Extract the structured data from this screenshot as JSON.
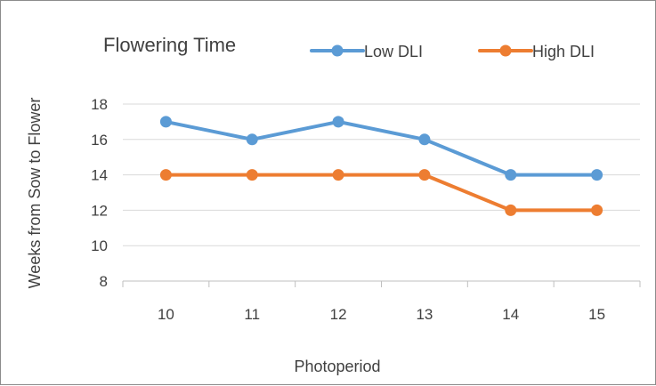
{
  "chart_data": {
    "type": "line",
    "title": "Flowering Time",
    "xlabel": "Photoperiod",
    "ylabel": "Weeks from Sow to Flower",
    "categories": [
      "10",
      "11",
      "12",
      "13",
      "14",
      "15"
    ],
    "series": [
      {
        "name": "Low DLI",
        "values": [
          17,
          16,
          17,
          16,
          14,
          14
        ],
        "color": "#5b9bd5"
      },
      {
        "name": "High DLI",
        "values": [
          14,
          14,
          14,
          14,
          12,
          12
        ],
        "color": "#ed7d31"
      }
    ],
    "ylim": [
      8,
      18
    ],
    "yticks": [
      8,
      10,
      12,
      14,
      16,
      18
    ],
    "grid": true,
    "legend_position": "top-right",
    "grid_color": "#d9d9d9",
    "axis_color": "#bfbfbf",
    "text_color": "#404040"
  }
}
